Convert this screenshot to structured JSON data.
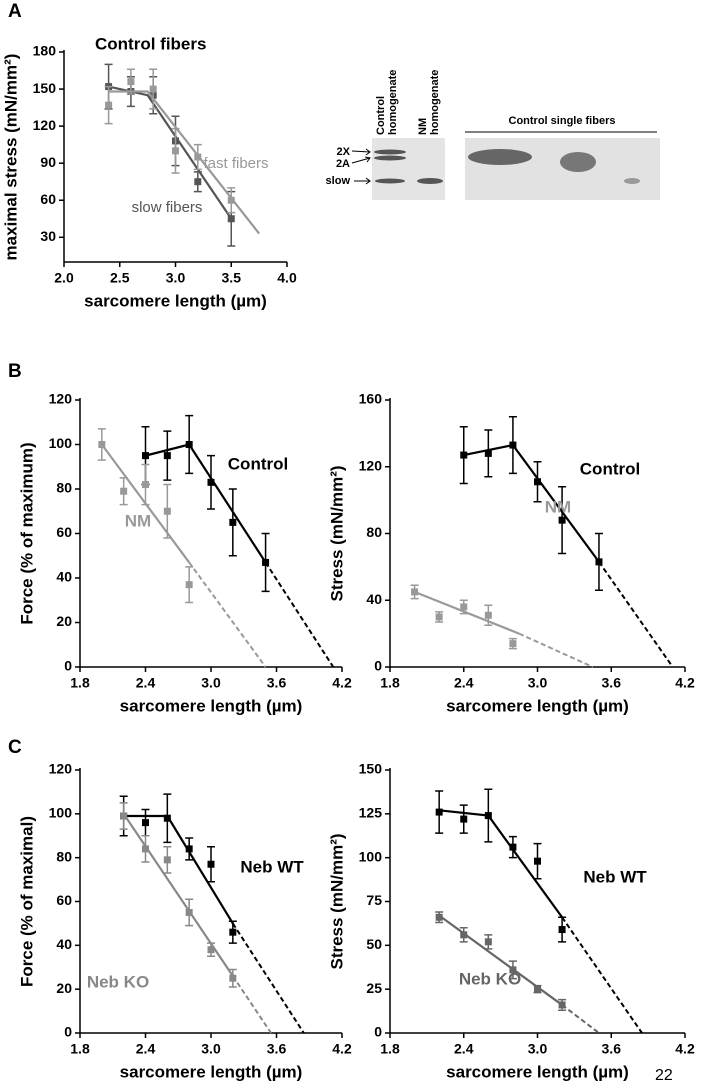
{
  "panel_labels": [
    "A",
    "B",
    "C"
  ],
  "gel": {
    "lanes": [
      [
        "Control",
        "homogenate"
      ],
      [
        "NM",
        "homogenate"
      ]
    ],
    "bands": [
      "2X",
      "2A",
      "slow"
    ],
    "single_fibers_label": "Control single fibers"
  },
  "page_number": "22",
  "chart_data": [
    {
      "type": "line",
      "title": "Control fibers",
      "xlabel": "sarcomere length (µm)",
      "ylabel": "maximal stress (mN/mm²)",
      "xlim": [
        2.0,
        4.0
      ],
      "xticks": [
        {
          "value": 2,
          "label": "2.0"
        },
        2.5,
        {
          "value": 3,
          "label": "3.0"
        },
        3.5,
        {
          "value": 4,
          "label": "4.0"
        }
      ],
      "ylim": [
        10,
        180
      ],
      "yticks": [
        30,
        60,
        90,
        120,
        150,
        180
      ],
      "series": [
        {
          "name": "slow fibers",
          "color": "#555555",
          "x": [
            2.4,
            2.6,
            2.8,
            3.0,
            3.2,
            3.5
          ],
          "values": [
            152,
            148,
            145,
            108,
            75,
            45
          ],
          "errors": [
            18,
            12,
            15,
            20,
            8,
            22
          ],
          "fit_x": [
            2.4,
            2.75,
            3.5
          ],
          "fit_values": [
            152,
            145,
            45
          ]
        },
        {
          "name": "fast fibers",
          "color": "#999999",
          "x": [
            2.4,
            2.6,
            2.8,
            3.0,
            3.2,
            3.5
          ],
          "values": [
            137,
            156,
            150,
            100,
            95,
            60
          ],
          "errors": [
            15,
            10,
            16,
            18,
            10,
            10
          ],
          "fit_x": [
            2.4,
            2.75,
            3.75
          ],
          "fit_values": [
            148,
            148,
            33
          ]
        }
      ]
    },
    {
      "type": "line",
      "xlabel": "sarcomere length (µm)",
      "ylabel": "Force (% of maximum)",
      "xlim": [
        1.8,
        4.2
      ],
      "xticks": [
        1.8,
        2.4,
        {
          "value": 3,
          "label": "3.0"
        },
        3.6,
        4.2
      ],
      "ylim": [
        0,
        120
      ],
      "yticks": [
        0,
        20,
        40,
        60,
        80,
        100,
        120
      ],
      "series": [
        {
          "name": "Control",
          "color": "#000000",
          "x": [
            2.4,
            2.6,
            2.8,
            3.0,
            3.2,
            3.5
          ],
          "values": [
            95,
            95,
            100,
            83,
            65,
            47
          ],
          "errors": [
            13,
            11,
            13,
            12,
            15,
            13
          ],
          "fit_x": [
            2.4,
            2.8,
            3.5
          ],
          "fit_values": [
            95,
            100,
            47
          ],
          "extrap_x": [
            3.5,
            4.12
          ],
          "extrap_values": [
            47,
            0
          ]
        },
        {
          "name": "NM",
          "color": "#999999",
          "x": [
            2.0,
            2.2,
            2.4,
            2.6,
            2.8
          ],
          "values": [
            100,
            79,
            82,
            70,
            37
          ],
          "errors": [
            7,
            6,
            9,
            12,
            8
          ],
          "fit_x": [
            2.0,
            2.8
          ],
          "fit_values": [
            100,
            47
          ],
          "extrap_x": [
            2.8,
            3.5
          ],
          "extrap_values": [
            47,
            0
          ]
        }
      ]
    },
    {
      "type": "line",
      "xlabel": "sarcomere length (µm)",
      "ylabel": "Stress (mN/mm²)",
      "xlim": [
        1.8,
        4.2
      ],
      "xticks": [
        1.8,
        2.4,
        {
          "value": 3,
          "label": "3.0"
        },
        3.6,
        4.2
      ],
      "ylim": [
        0,
        160
      ],
      "yticks": [
        0,
        40,
        80,
        120,
        160
      ],
      "series": [
        {
          "name": "Control",
          "color": "#000000",
          "x": [
            2.4,
            2.6,
            2.8,
            3.0,
            3.2,
            3.5
          ],
          "values": [
            127,
            128,
            133,
            111,
            88,
            63
          ],
          "errors": [
            17,
            14,
            17,
            12,
            20,
            17
          ],
          "fit_x": [
            2.4,
            2.8,
            3.5
          ],
          "fit_values": [
            127,
            133,
            63
          ],
          "extrap_x": [
            3.5,
            4.1
          ],
          "extrap_values": [
            63,
            0
          ]
        },
        {
          "name": "NM",
          "color": "#999999",
          "x": [
            2.0,
            2.2,
            2.4,
            2.6,
            2.8
          ],
          "values": [
            45,
            30,
            36,
            31,
            14
          ],
          "errors": [
            4,
            3,
            4,
            6,
            3
          ],
          "fit_x": [
            2.0,
            2.85
          ],
          "fit_values": [
            45,
            20
          ],
          "extrap_x": [
            2.85,
            3.45
          ],
          "extrap_values": [
            20,
            0
          ]
        }
      ]
    },
    {
      "type": "line",
      "xlabel": "sarcomere length (µm)",
      "ylabel": "Force (% of maximal)",
      "xlim": [
        1.8,
        4.2
      ],
      "xticks": [
        1.8,
        2.4,
        {
          "value": 3,
          "label": "3.0"
        },
        3.6,
        4.2
      ],
      "ylim": [
        0,
        120
      ],
      "yticks": [
        0,
        20,
        40,
        60,
        80,
        100,
        120
      ],
      "series": [
        {
          "name": "Neb WT",
          "color": "#000000",
          "x": [
            2.2,
            2.4,
            2.6,
            2.8,
            3.0,
            3.2
          ],
          "values": [
            99,
            96,
            98,
            84,
            77,
            46
          ],
          "errors": [
            9,
            6,
            11,
            5,
            8,
            5
          ],
          "fit_x": [
            2.2,
            2.6,
            3.2
          ],
          "fit_values": [
            99,
            99,
            50
          ],
          "extrap_x": [
            3.2,
            3.85
          ],
          "extrap_values": [
            50,
            0
          ]
        },
        {
          "name": "Neb KO",
          "color": "#888888",
          "x": [
            2.2,
            2.4,
            2.6,
            2.8,
            3.0,
            3.2
          ],
          "values": [
            99,
            84,
            79,
            55,
            38,
            25
          ],
          "errors": [
            6,
            6,
            6,
            6,
            3,
            4
          ],
          "fit_x": [
            2.2,
            3.2
          ],
          "fit_values": [
            100,
            26
          ],
          "extrap_x": [
            3.2,
            3.55
          ],
          "extrap_values": [
            26,
            0
          ]
        }
      ]
    },
    {
      "type": "line",
      "xlabel": "sarcomere length (µm)",
      "ylabel": "Stress (mN/mm²)",
      "xlim": [
        1.8,
        4.2
      ],
      "xticks": [
        1.8,
        2.4,
        {
          "value": 3,
          "label": "3.0"
        },
        3.6,
        4.2
      ],
      "ylim": [
        0,
        150
      ],
      "yticks": [
        0,
        25,
        50,
        75,
        100,
        125,
        150
      ],
      "series": [
        {
          "name": "Neb WT",
          "color": "#000000",
          "x": [
            2.2,
            2.4,
            2.6,
            2.8,
            3.0,
            3.2
          ],
          "values": [
            126,
            122,
            124,
            106,
            98,
            59
          ],
          "errors": [
            12,
            8,
            15,
            6,
            10,
            7
          ],
          "fit_x": [
            2.2,
            2.6,
            3.2
          ],
          "fit_values": [
            127,
            124,
            66
          ],
          "extrap_x": [
            3.2,
            3.85
          ],
          "extrap_values": [
            66,
            0
          ]
        },
        {
          "name": "Neb KO",
          "color": "#666666",
          "x": [
            2.2,
            2.4,
            2.6,
            2.8,
            3.0,
            3.2
          ],
          "values": [
            66,
            56,
            52,
            36,
            25,
            16
          ],
          "errors": [
            3,
            4,
            4,
            5,
            2,
            3
          ],
          "fit_x": [
            2.2,
            3.2
          ],
          "fit_values": [
            67,
            16
          ],
          "extrap_x": [
            3.2,
            3.5
          ],
          "extrap_values": [
            16,
            0
          ]
        }
      ]
    }
  ]
}
